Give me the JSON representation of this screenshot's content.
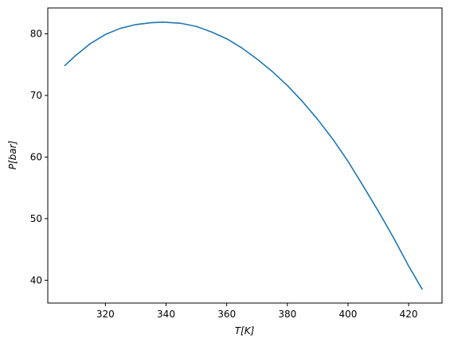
{
  "chart_data": {
    "type": "line",
    "title": "",
    "xlabel": "T[K]",
    "ylabel": "P[bar]",
    "xlim": [
      301,
      431
    ],
    "ylim": [
      36.3,
      84.2
    ],
    "xticks": [
      320,
      340,
      360,
      380,
      400,
      420
    ],
    "yticks": [
      40,
      50,
      60,
      70,
      80
    ],
    "grid": false,
    "series": [
      {
        "color": "#1f77b4",
        "x": [
          306.5,
          310,
          315,
          320,
          325,
          330,
          335,
          339,
          345,
          350,
          355,
          360,
          365,
          370,
          375,
          380,
          385,
          390,
          395,
          400,
          405,
          410,
          415,
          420,
          424.5
        ],
        "y": [
          74.8,
          76.4,
          78.4,
          79.9,
          80.9,
          81.5,
          81.8,
          81.9,
          81.7,
          81.2,
          80.3,
          79.2,
          77.7,
          75.9,
          73.9,
          71.6,
          69.0,
          66.1,
          62.9,
          59.3,
          55.3,
          51.2,
          46.9,
          42.3,
          38.5
        ]
      }
    ]
  }
}
